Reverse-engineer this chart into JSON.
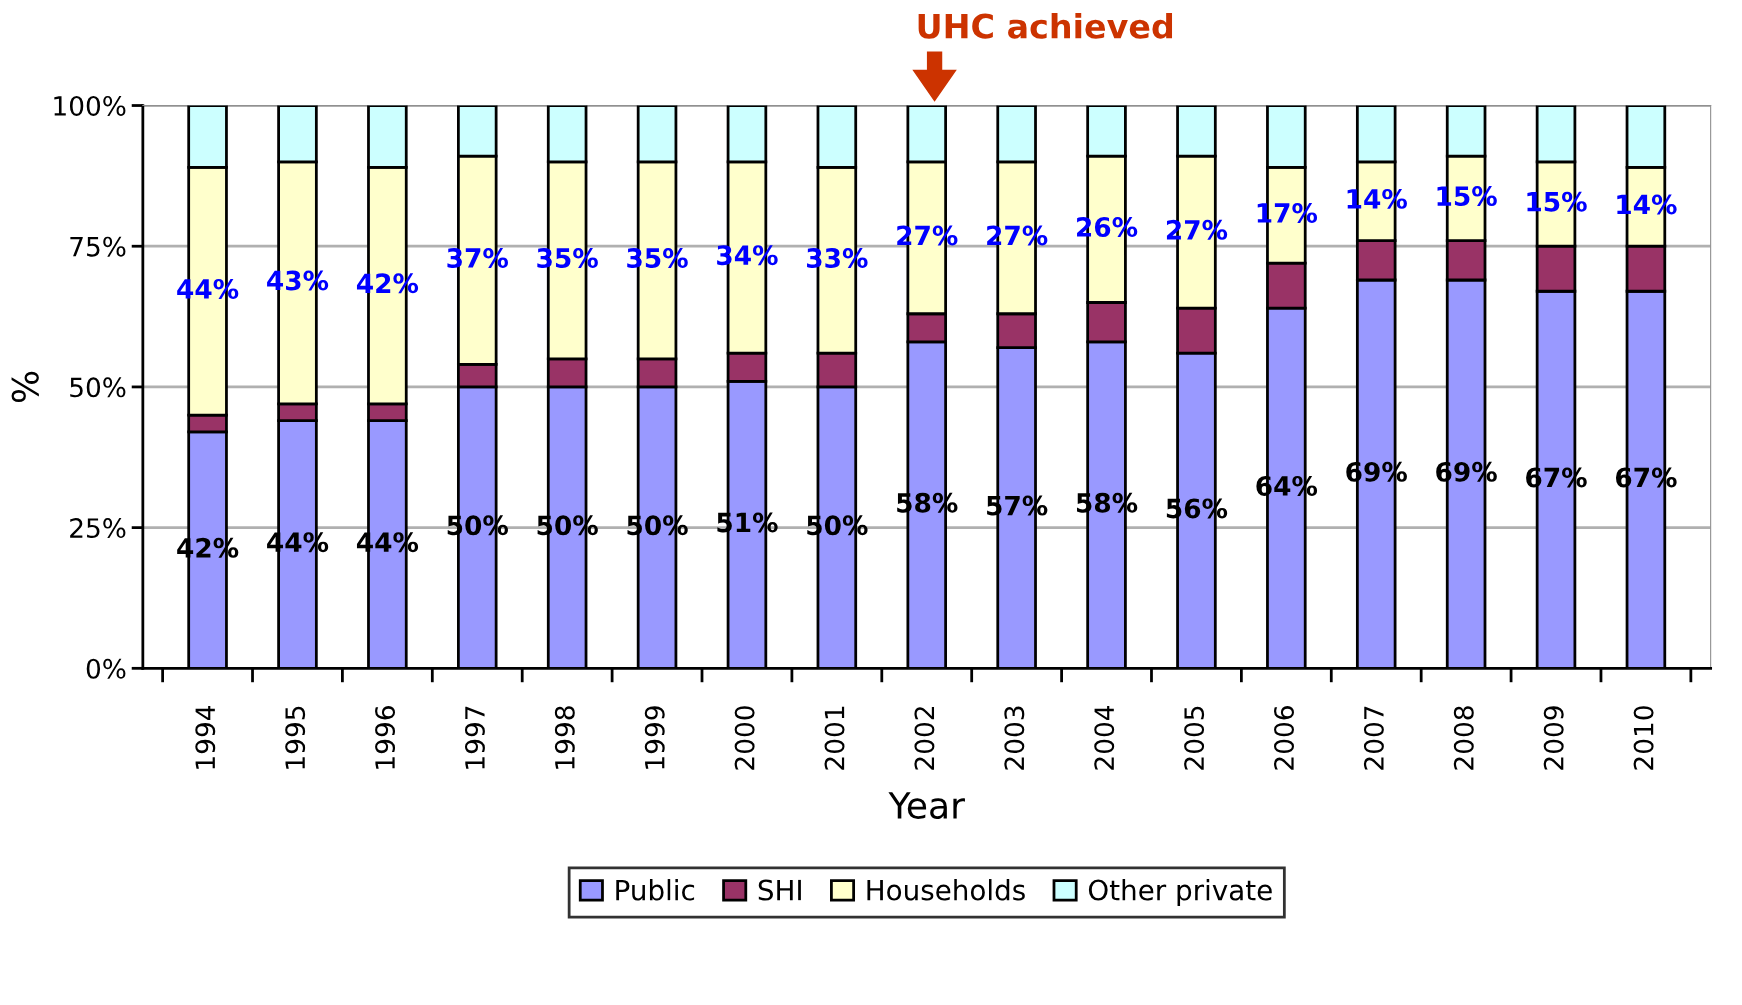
{
  "chart_data": {
    "type": "bar",
    "stacked": true,
    "xlabel": "Year",
    "ylabel": "%",
    "categories": [
      "1994",
      "1995",
      "1996",
      "1997",
      "1998",
      "1999",
      "2000",
      "2001",
      "2002",
      "2003",
      "2004",
      "2005",
      "2006",
      "2007",
      "2008",
      "2009",
      "2010"
    ],
    "series": [
      {
        "name": "Public",
        "color": "#9999ff",
        "values": [
          42,
          44,
          44,
          50,
          50,
          50,
          51,
          50,
          58,
          57,
          58,
          56,
          64,
          69,
          69,
          67,
          67
        ],
        "value_labels": [
          "42%",
          "44%",
          "44%",
          "50%",
          "50%",
          "50%",
          "51%",
          "50%",
          "58%",
          "57%",
          "58%",
          "56%",
          "64%",
          "69%",
          "69%",
          "67%",
          "67%"
        ]
      },
      {
        "name": "SHI",
        "color": "#993366",
        "values": [
          3,
          3,
          3,
          4,
          5,
          5,
          5,
          6,
          5,
          6,
          7,
          8,
          8,
          7,
          7,
          8,
          8
        ]
      },
      {
        "name": "Households",
        "color": "#ffffcc",
        "values": [
          44,
          43,
          42,
          37,
          35,
          35,
          34,
          33,
          27,
          27,
          26,
          27,
          17,
          14,
          15,
          15,
          14
        ],
        "value_labels": [
          "44%",
          "43%",
          "42%",
          "37%",
          "35%",
          "35%",
          "34%",
          "33%",
          "27%",
          "27%",
          "26%",
          "27%",
          "17%",
          "14%",
          "15%",
          "15%",
          "14%"
        ]
      },
      {
        "name": "Other private",
        "color": "#ccffff",
        "values": [
          11,
          10,
          11,
          9,
          10,
          10,
          10,
          11,
          10,
          10,
          9,
          9,
          11,
          10,
          9,
          10,
          11
        ]
      }
    ],
    "ylim": [
      0,
      100
    ],
    "yticks": [
      {
        "value": 0,
        "label": "0%"
      },
      {
        "value": 25,
        "label": "25%"
      },
      {
        "value": 50,
        "label": "50%"
      },
      {
        "value": 75,
        "label": "75%"
      },
      {
        "value": 100,
        "label": "100%"
      }
    ],
    "grid": "y",
    "legend": "bottom",
    "annotations": [
      "UHC achieved"
    ]
  }
}
